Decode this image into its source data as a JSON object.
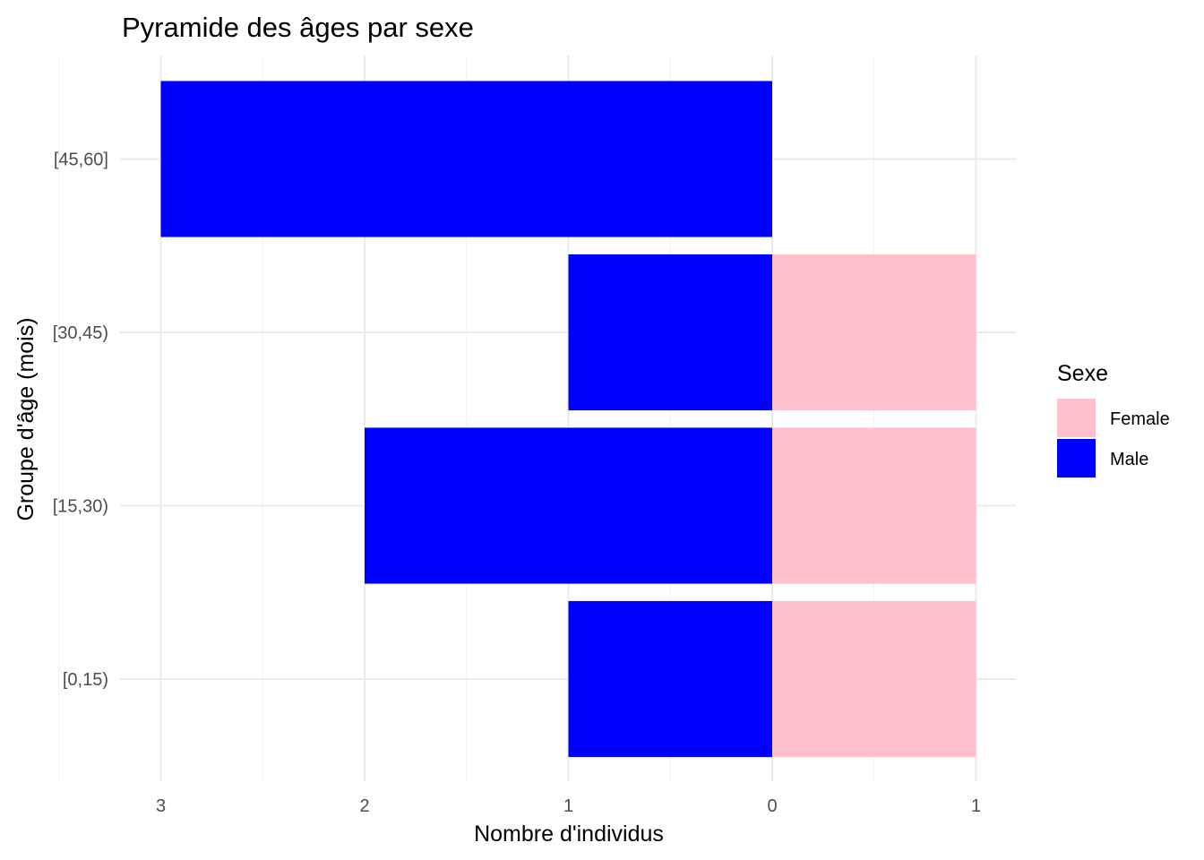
{
  "chart_data": {
    "type": "bar",
    "orientation": "horizontal",
    "title": "Pyramide des âges par sexe",
    "xlabel": "Nombre d'individus",
    "ylabel": "Groupe d'âge (mois)",
    "categories": [
      "[0,15)",
      "[15,30)",
      "[30,45)",
      "[45,60]"
    ],
    "series": [
      {
        "name": "Female",
        "color": "#FFC0CB",
        "values": [
          1,
          1,
          1,
          0
        ]
      },
      {
        "name": "Male",
        "color": "#0000FF",
        "values": [
          -1,
          -2,
          -1,
          -3
        ]
      }
    ],
    "xlim": [
      -3,
      1
    ],
    "x_ticks": [
      {
        "value": -3,
        "label": "3"
      },
      {
        "value": -2,
        "label": "2"
      },
      {
        "value": -1,
        "label": "1"
      },
      {
        "value": 0,
        "label": "0"
      },
      {
        "value": 1,
        "label": "1"
      }
    ],
    "grid": true,
    "legend": {
      "title": "Sexe",
      "position": "right",
      "entries": [
        "Female",
        "Male"
      ]
    }
  }
}
